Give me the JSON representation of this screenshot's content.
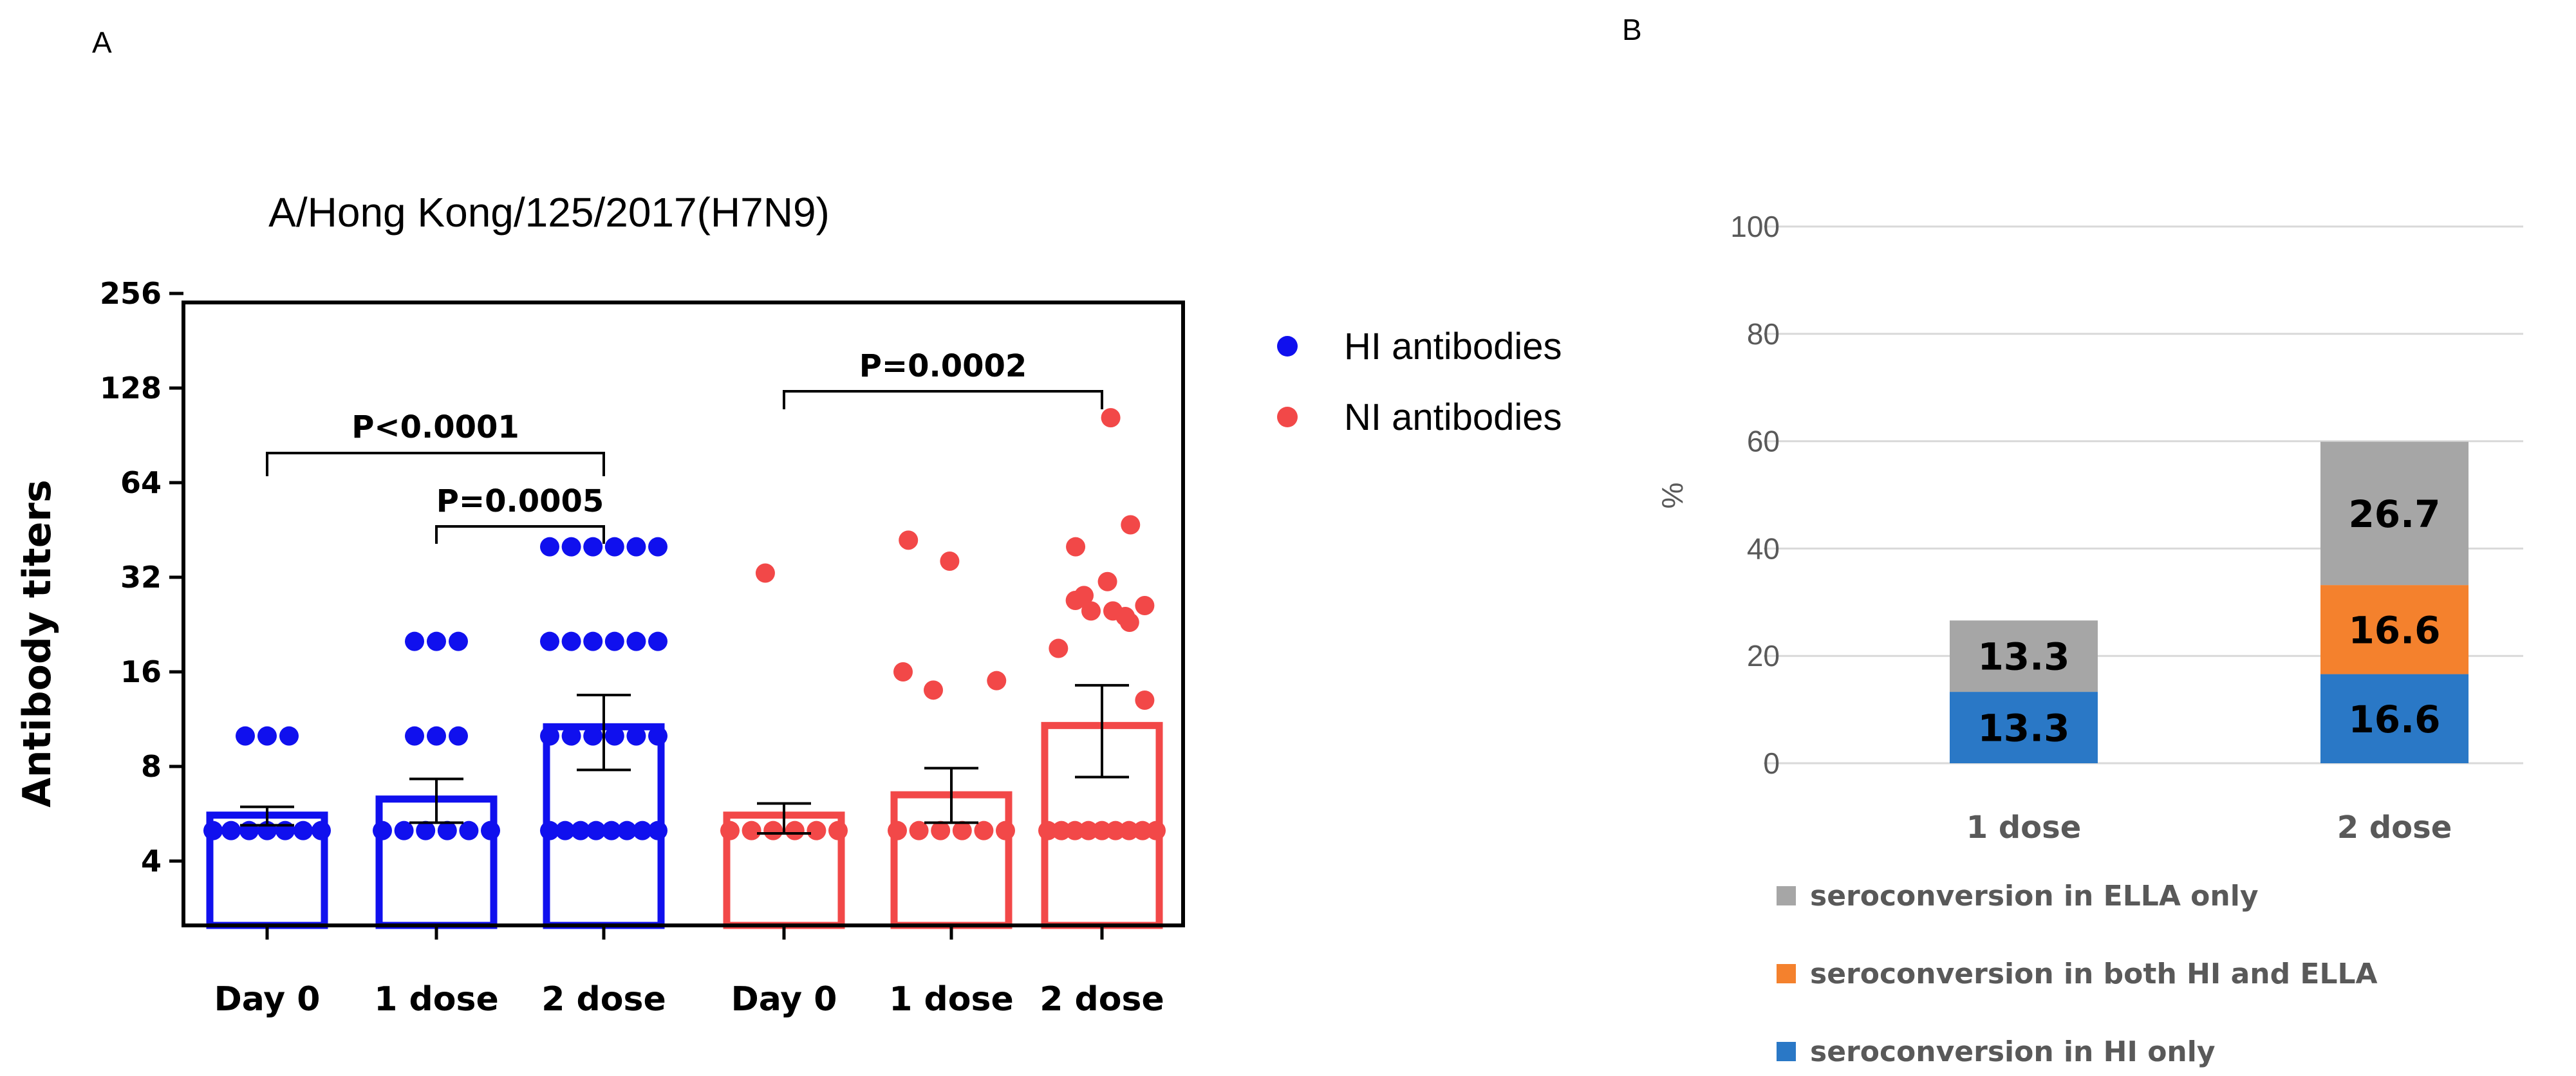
{
  "panels": {
    "a_label": "A",
    "b_label": "B"
  },
  "chart_data": [
    {
      "type": "scatter",
      "subtype": "bar-with-points",
      "title": "A/Hong Kong/125/2017(H7N9)",
      "ylabel": "Antibody titers",
      "yscale": "log2",
      "ylim": [
        2.83,
        256
      ],
      "yticks": [
        "4",
        "8",
        "16",
        "32",
        "64",
        "128",
        "256"
      ],
      "categories": [
        "Day 0",
        "1 dose",
        "2 dose",
        "Day 0",
        "1 dose",
        "2 dose"
      ],
      "colors": {
        "HI": "#1010ee",
        "NI": "#f24848"
      },
      "legend": [
        "HI antibodies",
        "NI antibodies"
      ],
      "series": [
        {
          "name": "HI antibodies",
          "groups": [
            {
              "category": "Day 0",
              "mean": 5.6,
              "err_low": 5.2,
              "err_high": 5.95,
              "points": [
                10,
                10,
                10,
                5,
                5,
                5,
                5,
                5,
                5,
                5
              ]
            },
            {
              "category": "1 dose",
              "mean": 6.3,
              "err_low": 5.3,
              "err_high": 7.3,
              "points": [
                20,
                20,
                20,
                10,
                10,
                10,
                5,
                5,
                5,
                5,
                5,
                5
              ]
            },
            {
              "category": "2 dose",
              "mean": 10.7,
              "err_low": 7.8,
              "err_high": 13.5,
              "points": [
                40,
                40,
                40,
                40,
                40,
                40,
                20,
                20,
                20,
                20,
                20,
                20,
                10,
                10,
                10,
                10,
                10,
                10,
                5,
                5,
                5,
                5,
                5,
                5,
                5,
                5
              ]
            }
          ]
        },
        {
          "name": "NI antibodies",
          "groups": [
            {
              "category": "Day 0",
              "mean": 5.6,
              "err_low": 4.9,
              "err_high": 6.1,
              "points": [
                33,
                5,
                5,
                5,
                5,
                5,
                5
              ]
            },
            {
              "category": "1 dose",
              "mean": 6.5,
              "err_low": 5.3,
              "err_high": 7.9,
              "points": [
                42,
                36,
                16,
                15,
                14,
                5,
                5,
                5,
                5,
                5,
                5
              ]
            },
            {
              "category": "2 dose",
              "mean": 10.8,
              "err_low": 7.4,
              "err_high": 14.5,
              "points": [
                103,
                47,
                40,
                31,
                28,
                27,
                26,
                25,
                25,
                24,
                23,
                19,
                13,
                5,
                5,
                5,
                5,
                5,
                5,
                5,
                5,
                5
              ]
            }
          ]
        }
      ],
      "comparisons": [
        {
          "label": "P<0.0001",
          "from": 0,
          "to": 2
        },
        {
          "label": "P=0.0005",
          "from": 1,
          "to": 2
        },
        {
          "label": "P=0.0002",
          "from": 3,
          "to": 5
        }
      ]
    },
    {
      "type": "bar",
      "subtype": "stacked",
      "ylabel": "%",
      "ylim": [
        0,
        100
      ],
      "yticks": [
        "0",
        "20",
        "40",
        "60",
        "80",
        "100"
      ],
      "categories": [
        "1 dose",
        "2 dose"
      ],
      "series": [
        {
          "name": "seroconversion in HI only",
          "color": "#2a78c6",
          "values": [
            13.3,
            16.6
          ],
          "labels": [
            "13.3",
            "16.6"
          ]
        },
        {
          "name": "seroconversion in both HI and ELLA",
          "color": "#f4812d",
          "values": [
            0,
            16.6
          ],
          "labels": [
            "",
            "16.6"
          ]
        },
        {
          "name": "seroconversion in ELLA only",
          "color": "#a6a6a6",
          "values": [
            13.3,
            26.7
          ],
          "labels": [
            "13.3",
            "26.7"
          ]
        }
      ],
      "legend": [
        "seroconversion in ELLA only",
        "seroconversion in both HI and ELLA",
        "seroconversion in HI only"
      ]
    }
  ]
}
